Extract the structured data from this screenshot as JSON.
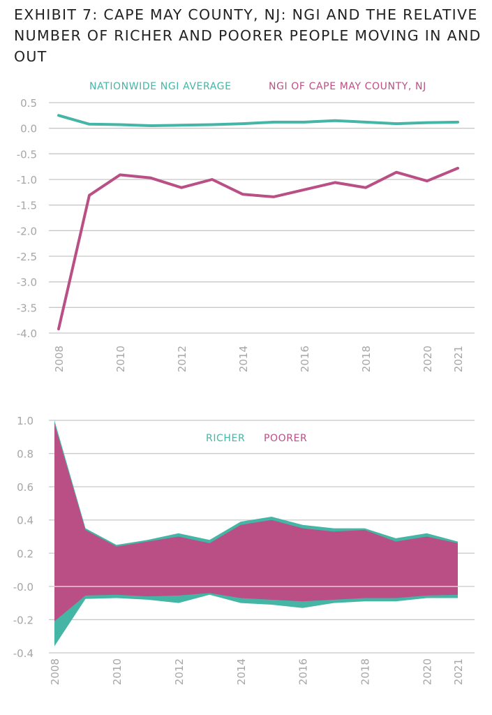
{
  "title": "EXHIBIT 7: CAPE MAY COUNTY, NJ: NGI AND THE RELATIVE NUMBER OF RICHER AND POORER PEOPLE MOVING IN AND OUT",
  "colors": {
    "teal": "#45b5a6",
    "magenta": "#b94f84",
    "grid": "#c8c8c8",
    "tick": "#a6a6a6"
  },
  "chart_data": [
    {
      "type": "line",
      "title": "",
      "xlabel": "",
      "ylabel": "",
      "x": [
        2008,
        2009,
        2010,
        2011,
        2012,
        2013,
        2014,
        2015,
        2016,
        2017,
        2018,
        2019,
        2020,
        2021
      ],
      "x_tick_labels": [
        "2008",
        "2010",
        "2012",
        "2014",
        "2016",
        "2018",
        "2020",
        "2021"
      ],
      "y_ticks": [
        0.5,
        0.0,
        -0.5,
        -1.0,
        -1.5,
        -2.0,
        -2.5,
        -3.0,
        -3.5,
        -4.0
      ],
      "y_tick_labels": [
        "0.5",
        "0.0",
        "-0.5",
        "-1.0",
        "-1.5",
        "-2.0",
        "-2.5",
        "-3.0",
        "-3.5",
        "-4.0"
      ],
      "ylim": [
        -4.0,
        0.5
      ],
      "grid": true,
      "legend_position": "top",
      "series": [
        {
          "name": "NATIONWIDE NGI AVERAGE",
          "color": "#45b5a6",
          "values": [
            0.25,
            0.08,
            0.07,
            0.05,
            0.06,
            0.07,
            0.09,
            0.12,
            0.12,
            0.15,
            0.12,
            0.09,
            0.11,
            0.12
          ]
        },
        {
          "name": "NGI OF CAPE MAY COUNTY, NJ",
          "color": "#b94f84",
          "values": [
            -3.92,
            -1.31,
            -0.91,
            -0.97,
            -1.16,
            -1.0,
            -1.29,
            -1.34,
            -1.2,
            -1.06,
            -1.16,
            -0.86,
            -1.03,
            -0.78
          ]
        }
      ]
    },
    {
      "type": "area",
      "title": "",
      "xlabel": "",
      "ylabel": "",
      "x": [
        2008,
        2009,
        2010,
        2011,
        2012,
        2013,
        2014,
        2015,
        2016,
        2017,
        2018,
        2019,
        2020,
        2021
      ],
      "x_tick_labels": [
        "2008",
        "2010",
        "2012",
        "2014",
        "2016",
        "2018",
        "2020",
        "2021"
      ],
      "y_ticks": [
        1.0,
        0.8,
        0.6,
        0.4,
        0.2,
        0.0,
        -0.2,
        -0.4
      ],
      "y_tick_labels": [
        "1.0",
        "0.8",
        "0.6",
        "0.4",
        "0.2",
        "-0.0",
        "-0.2",
        "-0.4"
      ],
      "ylim": [
        -0.4,
        1.0
      ],
      "grid": true,
      "legend_position": "top",
      "series": [
        {
          "name": "RICHER",
          "color": "#45b5a6",
          "upper": [
            1.0,
            0.35,
            0.25,
            0.28,
            0.32,
            0.28,
            0.39,
            0.42,
            0.37,
            0.35,
            0.35,
            0.29,
            0.32,
            0.27
          ],
          "lower": [
            -0.36,
            -0.075,
            -0.07,
            -0.08,
            -0.1,
            -0.05,
            -0.1,
            -0.11,
            -0.13,
            -0.1,
            -0.09,
            -0.09,
            -0.07,
            -0.07
          ]
        },
        {
          "name": "POORER",
          "color": "#b94f84",
          "upper": [
            0.98,
            0.34,
            0.24,
            0.27,
            0.3,
            0.26,
            0.37,
            0.4,
            0.35,
            0.33,
            0.34,
            0.27,
            0.3,
            0.26
          ],
          "lower": [
            -0.21,
            -0.055,
            -0.05,
            -0.06,
            -0.055,
            -0.04,
            -0.07,
            -0.08,
            -0.09,
            -0.08,
            -0.07,
            -0.07,
            -0.055,
            -0.05
          ]
        }
      ]
    }
  ]
}
